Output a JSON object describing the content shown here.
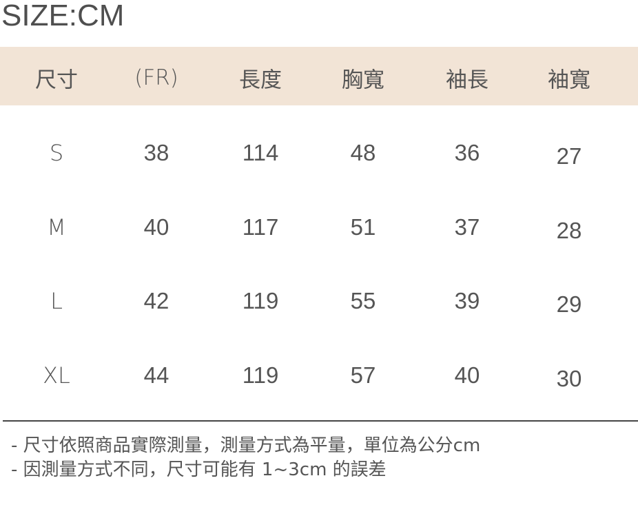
{
  "title": "SIZE:CM",
  "colors": {
    "header_bg": "#f2e4d6",
    "text": "#555555",
    "rule": "#444444"
  },
  "table": {
    "headers": [
      "尺寸",
      "(FR)",
      "長度",
      "胸寬",
      "袖長",
      "袖寬"
    ],
    "rows": [
      [
        "S",
        "38",
        "114",
        "48",
        "36",
        "27"
      ],
      [
        "M",
        "40",
        "117",
        "51",
        "37",
        "28"
      ],
      [
        "L",
        "42",
        "119",
        "55",
        "39",
        "29"
      ],
      [
        "XL",
        "44",
        "119",
        "57",
        "40",
        "30"
      ]
    ]
  },
  "notes": [
    "- 尺寸依照商品實際測量，測量方式為平量，單位為公分cm",
    "- 因測量方式不同，尺寸可能有 1~3cm 的誤差"
  ]
}
